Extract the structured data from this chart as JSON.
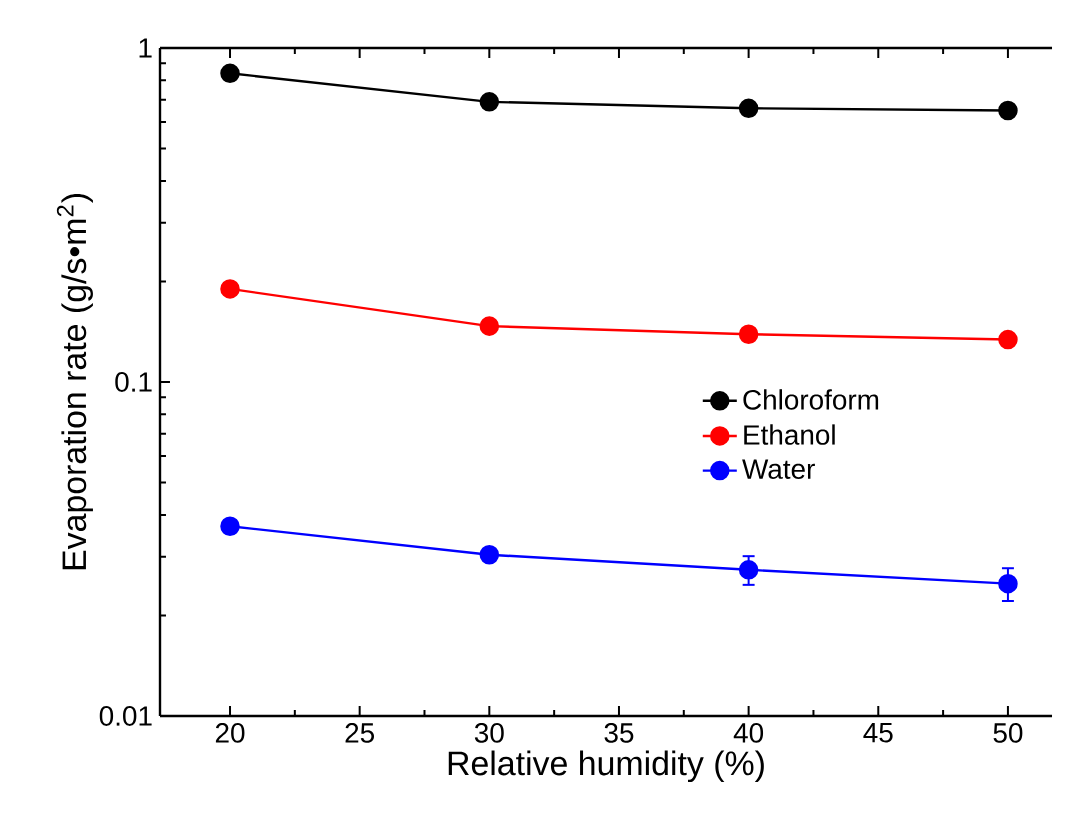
{
  "chart_data": {
    "type": "line",
    "xlabel": "Relative humidity (%)",
    "ylabel": "Evaporation rate (g/s•m$^{2}$)",
    "x": [
      20,
      30,
      40,
      50
    ],
    "log": "y",
    "xlim": [
      17.3,
      51.7
    ],
    "xticks": [
      20,
      25,
      30,
      35,
      40,
      45,
      50
    ],
    "ylim": [
      0.01,
      1
    ],
    "yticks": [
      {
        "value": 0.01,
        "label": "0.01"
      },
      {
        "value": 0.1,
        "label": "0.1"
      },
      {
        "value": 1,
        "label": "1"
      }
    ],
    "marker": "circle",
    "line_style": "solid",
    "legend": "right",
    "grid": false,
    "series": [
      {
        "name": "Chloroform",
        "color": "#000000",
        "values": [
          0.84,
          0.69,
          0.66,
          0.65
        ]
      },
      {
        "name": "Ethanol",
        "color": "#ff0000",
        "values": [
          0.19,
          0.147,
          0.139,
          0.134
        ]
      },
      {
        "name": "Water",
        "color": "#0000ff",
        "values": [
          0.037,
          0.0304,
          0.0274,
          0.0249
        ],
        "errors": [
          null,
          null,
          0.0027,
          0.0028
        ]
      }
    ]
  }
}
